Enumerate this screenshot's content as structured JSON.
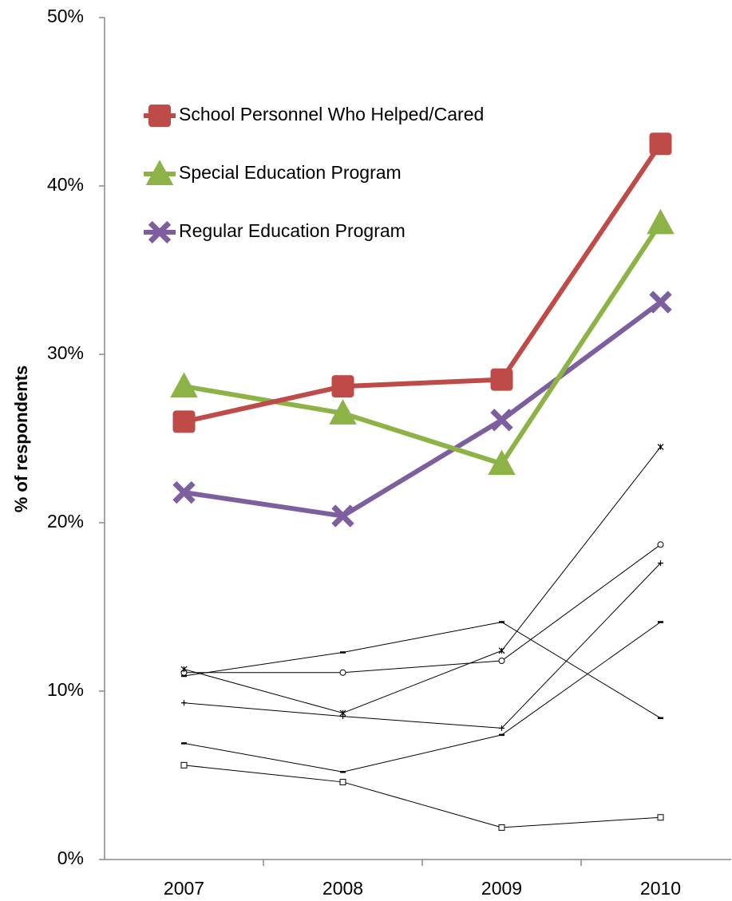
{
  "chart_data": {
    "type": "line",
    "y_label": "% of respondents",
    "categories": [
      "2007",
      "2008",
      "2009",
      "2010"
    ],
    "series": [
      {
        "name": "School Personnel Who Helped/Cared",
        "color": "#be4b48",
        "marker": "square",
        "width": 6,
        "values": [
          26.0,
          28.1,
          28.5,
          42.5
        ]
      },
      {
        "name": "Special Education Program",
        "color": "#8db347",
        "marker": "triangle",
        "width": 6,
        "values": [
          28.1,
          26.5,
          23.5,
          37.8
        ]
      },
      {
        "name": "Regular Education Program",
        "color": "#7d5fa0",
        "marker": "x",
        "width": 6,
        "values": [
          21.8,
          20.4,
          26.1,
          33.1
        ]
      },
      {
        "color": "#000000",
        "marker": "asterisk",
        "width": 1,
        "values": [
          11.3,
          8.7,
          12.4,
          24.5
        ]
      },
      {
        "color": "#000000",
        "marker": "circle",
        "width": 1,
        "values": [
          11.1,
          11.1,
          11.8,
          18.7
        ]
      },
      {
        "color": "#000000",
        "marker": "plus",
        "width": 1,
        "values": [
          9.3,
          8.5,
          7.8,
          17.6
        ]
      },
      {
        "color": "#000000",
        "marker": "dash",
        "width": 1,
        "values": [
          10.9,
          12.3,
          14.1,
          8.4
        ]
      },
      {
        "color": "#000000",
        "marker": "dash",
        "width": 1,
        "values": [
          6.9,
          5.2,
          7.4,
          14.1
        ]
      },
      {
        "color": "#000000",
        "marker": "square",
        "width": 1,
        "values": [
          5.6,
          4.6,
          1.9,
          2.5
        ]
      }
    ],
    "ylim": [
      0,
      50
    ],
    "yticks": [
      {
        "value": 0,
        "label": "0%"
      },
      {
        "value": 10,
        "label": "10%"
      },
      {
        "value": 20,
        "label": "20%"
      },
      {
        "value": 30,
        "label": "30%"
      },
      {
        "value": 40,
        "label": "40%"
      },
      {
        "value": 50,
        "label": "50%"
      }
    ],
    "grid": false,
    "legend": "upper left"
  }
}
